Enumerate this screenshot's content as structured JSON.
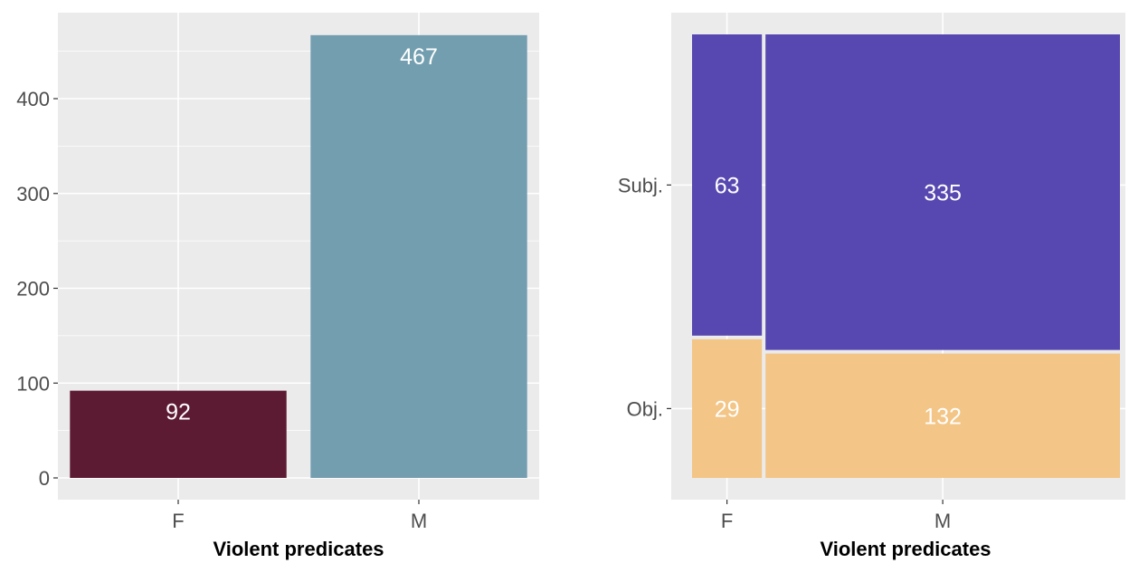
{
  "chart_data": [
    {
      "type": "bar",
      "categories": [
        "F",
        "M"
      ],
      "values": [
        92,
        467
      ],
      "colors": [
        "#5d1a33",
        "#739eaf"
      ],
      "data_labels": [
        "92",
        "467"
      ],
      "xlabel": "Violent predicates",
      "ylabel": "",
      "yticks": [
        0,
        100,
        200,
        300,
        400
      ],
      "ytick_labels": [
        "0",
        "100",
        "200",
        "300",
        "400"
      ],
      "ylim": [
        0,
        490
      ],
      "grid": true,
      "background": "#ebebeb"
    },
    {
      "type": "mosaic",
      "categories": [
        "F",
        "M"
      ],
      "rows": [
        "Subj.",
        "Obj."
      ],
      "series": [
        {
          "name": "Subj.",
          "values": [
            63,
            335
          ],
          "color": "#5747b0"
        },
        {
          "name": "Obj.",
          "values": [
            29,
            132
          ],
          "color": "#f3c586"
        }
      ],
      "data_labels": [
        [
          "63",
          "335"
        ],
        [
          "29",
          "132"
        ]
      ],
      "xlabel": "Violent predicates",
      "ylabel": "",
      "ytick_labels": [
        "Subj.",
        "Obj."
      ],
      "xtick_labels": [
        "F",
        "M"
      ],
      "grid": true,
      "background": "#ebebeb"
    }
  ]
}
